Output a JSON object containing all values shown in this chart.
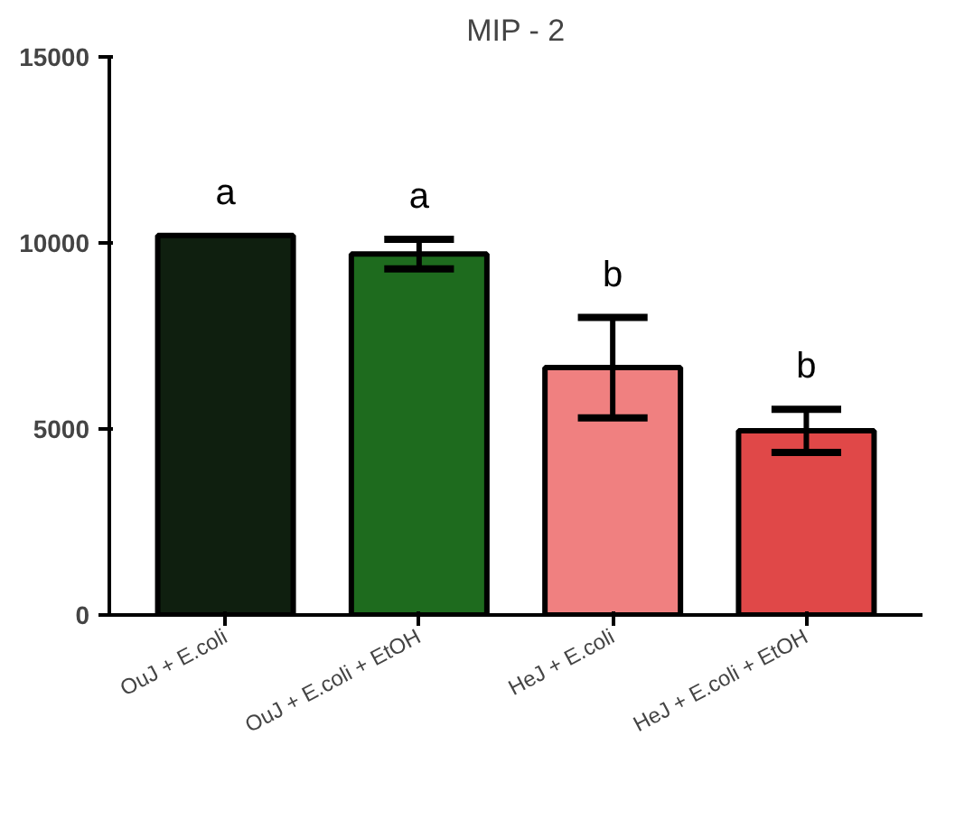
{
  "chart_data": {
    "type": "bar",
    "title": "MIP - 2",
    "categories": [
      "OuJ + E.coli",
      "OuJ + E.coli + EtOH",
      "HeJ + E.coli",
      "HeJ + E.coli + EtOH"
    ],
    "values": [
      10200,
      9700,
      6650,
      4950
    ],
    "errors": [
      null,
      400,
      1350,
      580
    ],
    "colors": [
      "#0f1f0f",
      "#1e6b1e",
      "#f08080",
      "#e04848"
    ],
    "ylim": [
      0,
      15000
    ],
    "yticks": [
      0,
      5000,
      10000,
      15000
    ],
    "grid": false,
    "annotations": [
      "a",
      "a",
      "b",
      "b"
    ]
  }
}
